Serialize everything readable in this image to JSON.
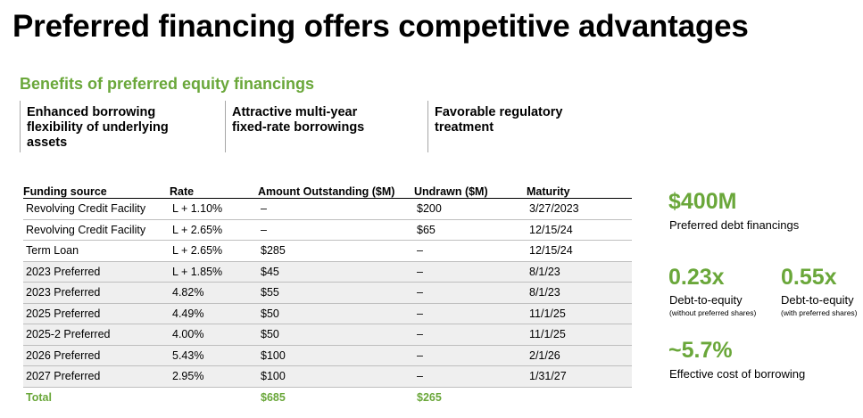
{
  "title": "Preferred financing offers competitive advantages",
  "subtitle": "Benefits of preferred equity financings",
  "benefits": [
    {
      "text": "Enhanced borrowing flexibility of underlying assets"
    },
    {
      "text": "Attractive multi-year fixed-rate borrowings"
    },
    {
      "text": "Favorable regulatory treatment"
    }
  ],
  "table": {
    "headers": [
      "Funding source",
      "Rate",
      "Amount Outstanding ($M)",
      "Undrawn ($M)",
      "Maturity"
    ],
    "rows": [
      [
        "Revolving Credit Facility",
        "L + 1.10%",
        "–",
        "$200",
        "3/27/2023"
      ],
      [
        "Revolving Credit Facility",
        "L + 2.65%",
        "–",
        "$65",
        "12/15/24"
      ],
      [
        "Term Loan",
        "L + 2.65%",
        "$285",
        "–",
        "12/15/24"
      ],
      [
        "2023 Preferred",
        "L + 1.85%",
        "$45",
        "–",
        "8/1/23"
      ],
      [
        "2023 Preferred",
        "4.82%",
        "$55",
        "–",
        "8/1/23"
      ],
      [
        "2025 Preferred",
        "4.49%",
        "$50",
        "–",
        "11/1/25"
      ],
      [
        "2025-2 Preferred",
        "4.00%",
        "$50",
        "–",
        "11/1/25"
      ],
      [
        "2026 Preferred",
        "5.43%",
        "$100",
        "–",
        "2/1/26"
      ],
      [
        "2027 Preferred",
        "2.95%",
        "$100",
        "–",
        "1/31/27"
      ]
    ],
    "total": [
      "Total",
      "",
      "$685",
      "$265",
      ""
    ]
  },
  "stats": {
    "preferred_debt": {
      "value": "$400M",
      "label": "Preferred debt financings"
    },
    "de_without": {
      "value": "0.23x",
      "label": "Debt-to-equity",
      "note": "(without preferred shares)"
    },
    "de_with": {
      "value": "0.55x",
      "label": "Debt-to-equity",
      "note": "(with preferred shares)"
    },
    "cost": {
      "value": "~5.7%",
      "label": "Effective cost of borrowing"
    }
  },
  "colors": {
    "accent": "#6aa73a",
    "row_shade": "#efefef",
    "divider": "#a6a6a6"
  }
}
